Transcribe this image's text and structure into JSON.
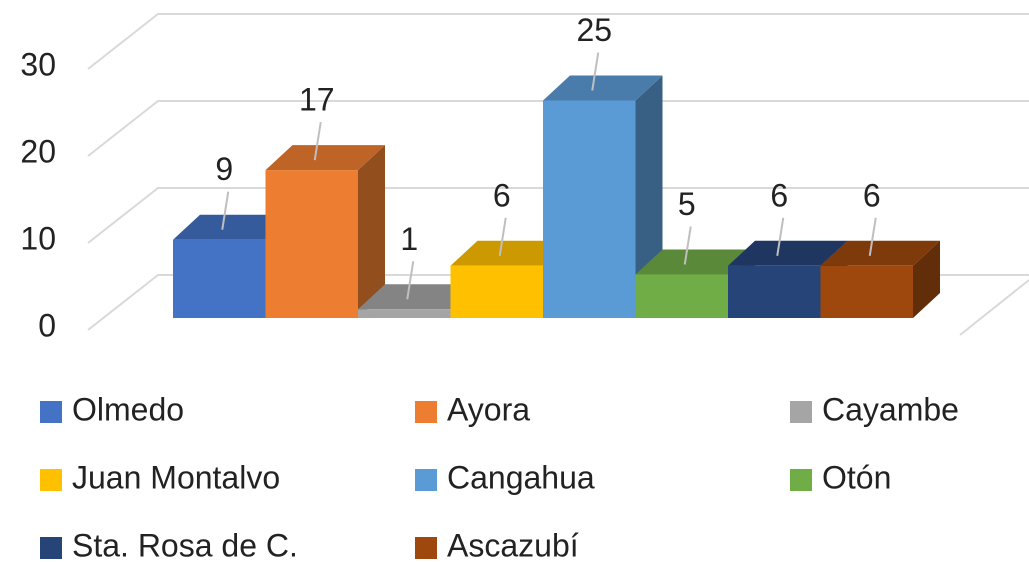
{
  "chart_data": {
    "type": "bar3d",
    "categories": [
      null
    ],
    "series": [
      {
        "name": "Olmedo",
        "color": "#4472c4",
        "values": [
          9
        ]
      },
      {
        "name": "Ayora",
        "color": "#ed7d31",
        "values": [
          17
        ]
      },
      {
        "name": "Cayambe",
        "color": "#a5a5a5",
        "values": [
          1
        ]
      },
      {
        "name": "Juan Montalvo",
        "color": "#ffc000",
        "values": [
          6
        ]
      },
      {
        "name": "Cangahua",
        "color": "#5b9bd5",
        "values": [
          25
        ]
      },
      {
        "name": "Otón",
        "color": "#70ad47",
        "values": [
          5
        ]
      },
      {
        "name": "Sta. Rosa de C.",
        "color": "#264478",
        "values": [
          6
        ]
      },
      {
        "name": "Ascazubí",
        "color": "#9e480e",
        "values": [
          6
        ]
      }
    ],
    "ylim": [
      0,
      30
    ],
    "yticks": [
      0,
      10,
      20,
      30
    ],
    "grid": true,
    "legend": "bottom"
  }
}
